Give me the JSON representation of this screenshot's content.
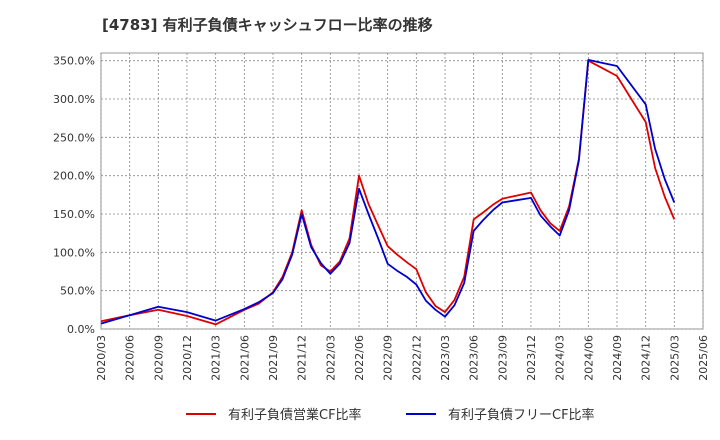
{
  "chart_data": {
    "type": "line",
    "title": "[4783]  有利子負債キャッシュフロー比率の推移",
    "x": [
      "2020/03",
      "2020/06",
      "2020/09",
      "2020/12",
      "2021/03",
      "2021/06",
      "2021/09",
      "2021/12",
      "2022/03",
      "2022/06",
      "2022/09",
      "2022/12",
      "2023/03",
      "2023/06",
      "2023/09",
      "2023/12",
      "2024/03",
      "2024/06",
      "2024/09",
      "2024/12",
      "2025/03",
      "2025/06"
    ],
    "ylim": [
      0,
      360
    ],
    "yticks": [
      0,
      50,
      100,
      150,
      200,
      250,
      300,
      350
    ],
    "ytick_labels": [
      "0.0%",
      "50.0%",
      "100.0%",
      "150.0%",
      "200.0%",
      "250.0%",
      "300.0%",
      "350.0%"
    ],
    "grid": true,
    "legend_position": "bottom",
    "series": [
      {
        "name": "有利子負債営業CF比率",
        "color": "#dd0000",
        "points": [
          [
            0,
            10
          ],
          [
            1,
            18
          ],
          [
            2,
            25
          ],
          [
            3,
            17
          ],
          [
            4,
            6
          ],
          [
            5,
            25
          ],
          [
            5.5,
            33
          ],
          [
            6,
            48
          ],
          [
            6.33,
            68
          ],
          [
            6.67,
            100
          ],
          [
            7,
            155
          ],
          [
            7.33,
            110
          ],
          [
            7.67,
            83
          ],
          [
            8,
            75
          ],
          [
            8.33,
            88
          ],
          [
            8.67,
            118
          ],
          [
            9,
            200
          ],
          [
            9.33,
            163
          ],
          [
            9.67,
            135
          ],
          [
            10,
            108
          ],
          [
            10.33,
            97
          ],
          [
            10.67,
            87
          ],
          [
            11,
            78
          ],
          [
            11.33,
            48
          ],
          [
            11.67,
            30
          ],
          [
            12,
            22
          ],
          [
            12.33,
            38
          ],
          [
            12.67,
            68
          ],
          [
            13,
            143
          ],
          [
            13.33,
            152
          ],
          [
            13.67,
            162
          ],
          [
            14,
            170
          ],
          [
            14.5,
            174
          ],
          [
            15,
            178
          ],
          [
            15.33,
            155
          ],
          [
            15.67,
            138
          ],
          [
            16,
            128
          ],
          [
            16.33,
            160
          ],
          [
            16.67,
            222
          ],
          [
            17,
            350
          ],
          [
            17.5,
            340
          ],
          [
            18,
            330
          ],
          [
            18.5,
            300
          ],
          [
            19,
            270
          ],
          [
            19.33,
            210
          ],
          [
            19.67,
            172
          ],
          [
            20,
            143
          ]
        ]
      },
      {
        "name": "有利子負債フリーCF比率",
        "color": "#0000cc",
        "points": [
          [
            0,
            7
          ],
          [
            1,
            18
          ],
          [
            2,
            29
          ],
          [
            3,
            22
          ],
          [
            4,
            11
          ],
          [
            5,
            26
          ],
          [
            5.5,
            35
          ],
          [
            6,
            47
          ],
          [
            6.33,
            65
          ],
          [
            6.67,
            97
          ],
          [
            7,
            150
          ],
          [
            7.33,
            107
          ],
          [
            7.67,
            86
          ],
          [
            8,
            72
          ],
          [
            8.33,
            85
          ],
          [
            8.67,
            112
          ],
          [
            9,
            183
          ],
          [
            9.33,
            150
          ],
          [
            9.67,
            118
          ],
          [
            10,
            85
          ],
          [
            10.33,
            76
          ],
          [
            10.67,
            68
          ],
          [
            11,
            58
          ],
          [
            11.33,
            37
          ],
          [
            11.67,
            25
          ],
          [
            12,
            16
          ],
          [
            12.33,
            31
          ],
          [
            12.67,
            60
          ],
          [
            13,
            128
          ],
          [
            13.33,
            142
          ],
          [
            13.67,
            155
          ],
          [
            14,
            165
          ],
          [
            14.5,
            168
          ],
          [
            15,
            171
          ],
          [
            15.33,
            148
          ],
          [
            15.67,
            134
          ],
          [
            16,
            122
          ],
          [
            16.33,
            155
          ],
          [
            16.67,
            220
          ],
          [
            17,
            351
          ],
          [
            17.5,
            347
          ],
          [
            18,
            343
          ],
          [
            18.5,
            318
          ],
          [
            19,
            293
          ],
          [
            19.33,
            235
          ],
          [
            19.67,
            195
          ],
          [
            20,
            165
          ]
        ]
      }
    ]
  }
}
